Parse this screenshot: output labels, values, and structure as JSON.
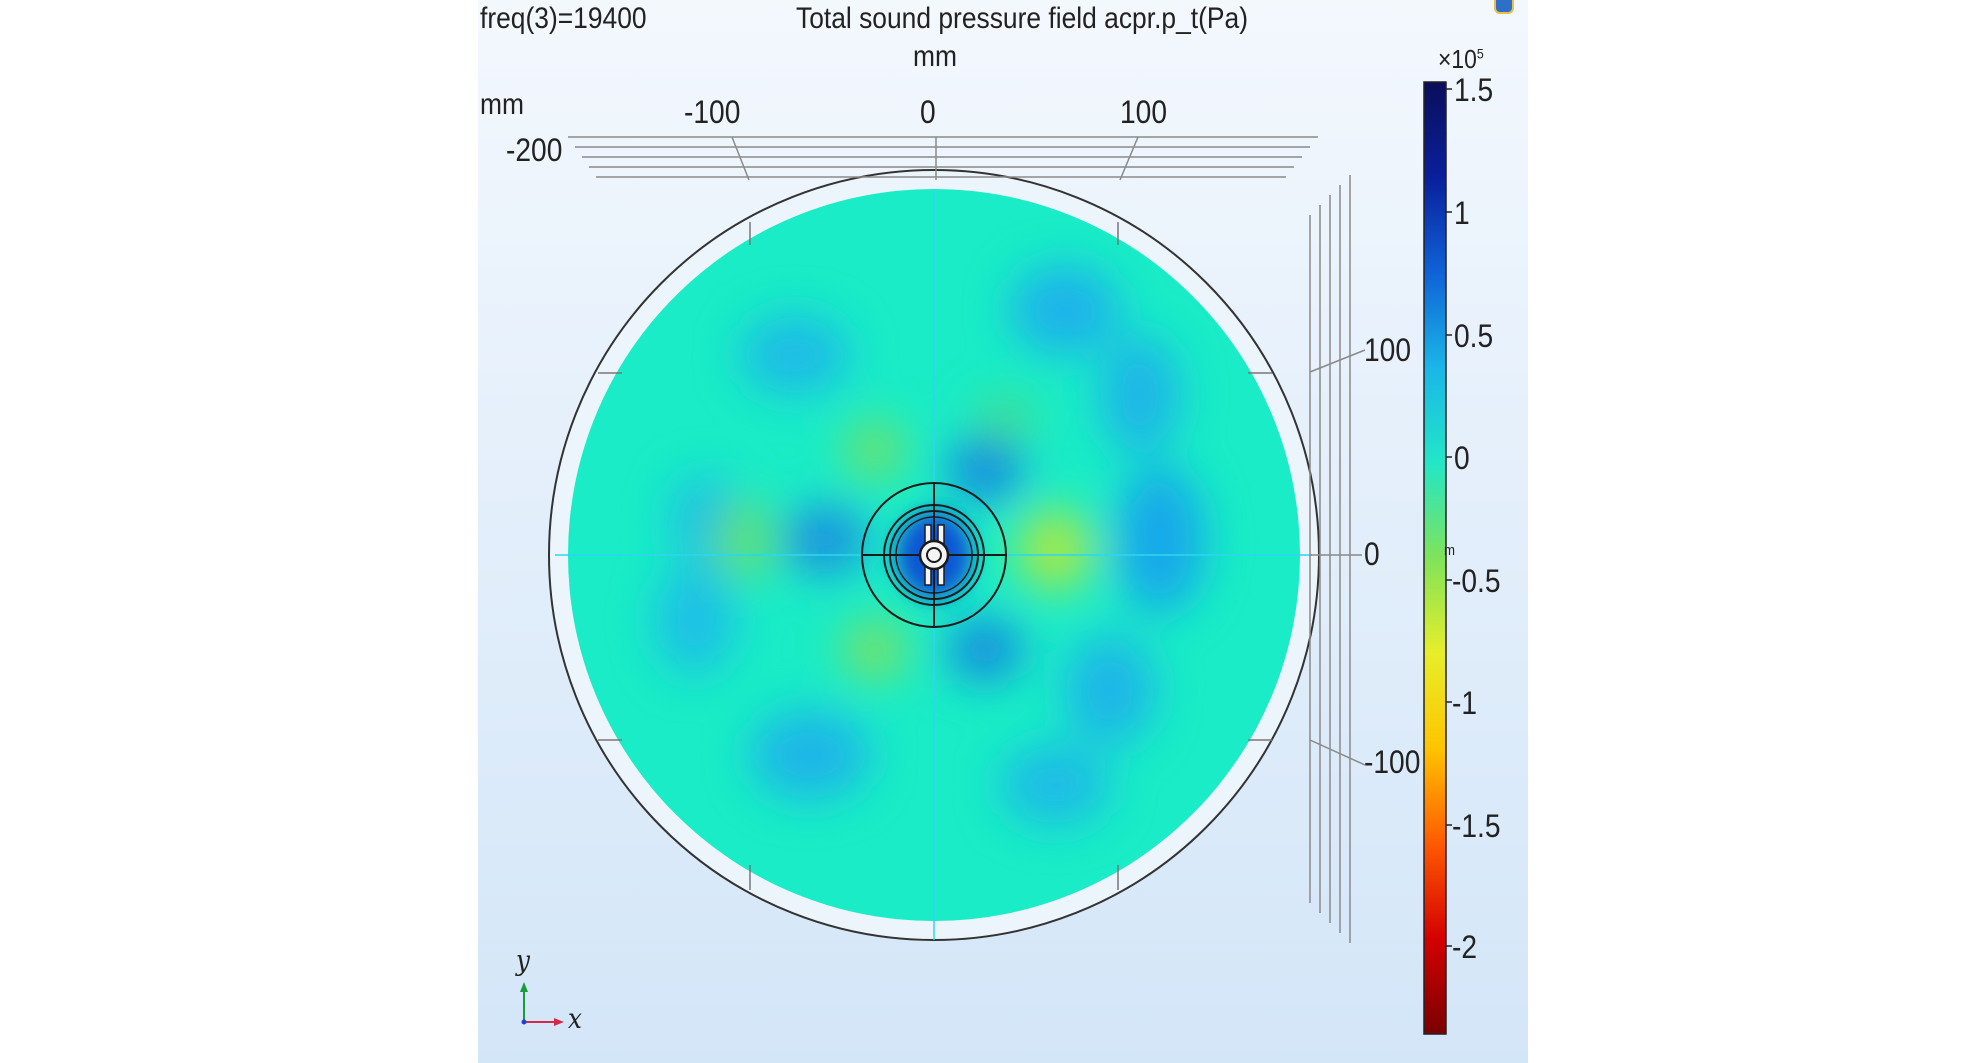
{
  "header": {
    "frequency_label": "freq(3)=19400",
    "plot_title": "Total sound pressure field acpr.p_t(Pa)",
    "unit_top": "mm",
    "unit_left": "mm"
  },
  "axes": {
    "top_ticks": [
      "-100",
      "0",
      "100"
    ],
    "left_tick": "-200",
    "right_ticks": [
      "100",
      "0",
      "-100"
    ],
    "triad_y": "y",
    "triad_x": "x",
    "stray_label": "m"
  },
  "colorbar": {
    "exponent_label": "×10",
    "exponent_power": "5",
    "ticks": [
      "1.5",
      "1",
      "0.5",
      "0",
      "-0.5",
      "-1",
      "-1.5",
      "-2"
    ],
    "range": [
      -2.4,
      1.55
    ],
    "colormap": [
      "#7a0000",
      "#d40000",
      "#ff5a00",
      "#ffc400",
      "#e7ee2a",
      "#7fe35a",
      "#22e6c8",
      "#1ab6e8",
      "#0f62d6",
      "#0a1f9c",
      "#0a0f5a"
    ]
  },
  "colors": {
    "field_base": "#19ecc6",
    "panel_background": "#e4effb",
    "outline": "#333333"
  }
}
